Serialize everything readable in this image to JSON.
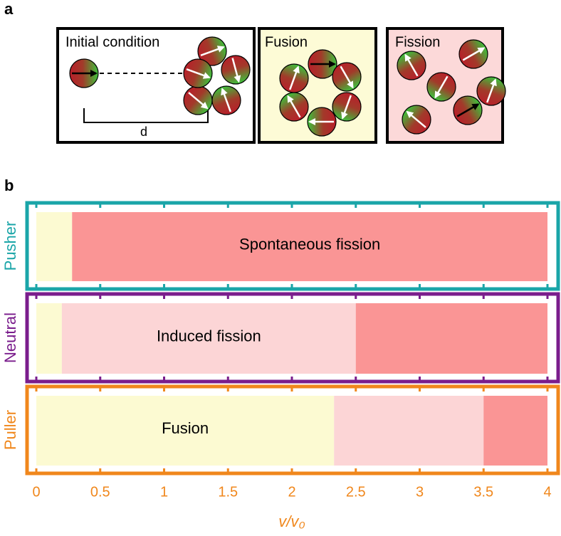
{
  "panel_labels": [
    "a",
    "b"
  ],
  "diagram": {
    "panels": [
      {
        "title": "Initial condition",
        "distance_label": "d"
      },
      {
        "title": "Fusion"
      },
      {
        "title": "Fission"
      }
    ]
  },
  "chart_data": {
    "type": "bar",
    "orientation": "horizontal",
    "stacked": true,
    "categories": [
      "Pusher",
      "Neutral",
      "Puller"
    ],
    "category_colors": [
      "#1aa5a8",
      "#7a1d8c",
      "#f0871c"
    ],
    "series": [
      {
        "name": "Fusion",
        "color": "#fcfad2",
        "values": [
          0.28,
          0.2,
          2.33
        ]
      },
      {
        "name": "Induced fission",
        "color": "#fcd5d6",
        "values": [
          0,
          2.3,
          1.17
        ]
      },
      {
        "name": "Spontaneous fission",
        "color": "#fa9595",
        "values": [
          3.72,
          1.5,
          0.5
        ]
      }
    ],
    "x_label": "v/v₀",
    "xlim": [
      0,
      4
    ],
    "xticks": [
      0,
      0.5,
      1,
      1.5,
      2,
      2.5,
      3,
      3.5,
      4
    ]
  }
}
